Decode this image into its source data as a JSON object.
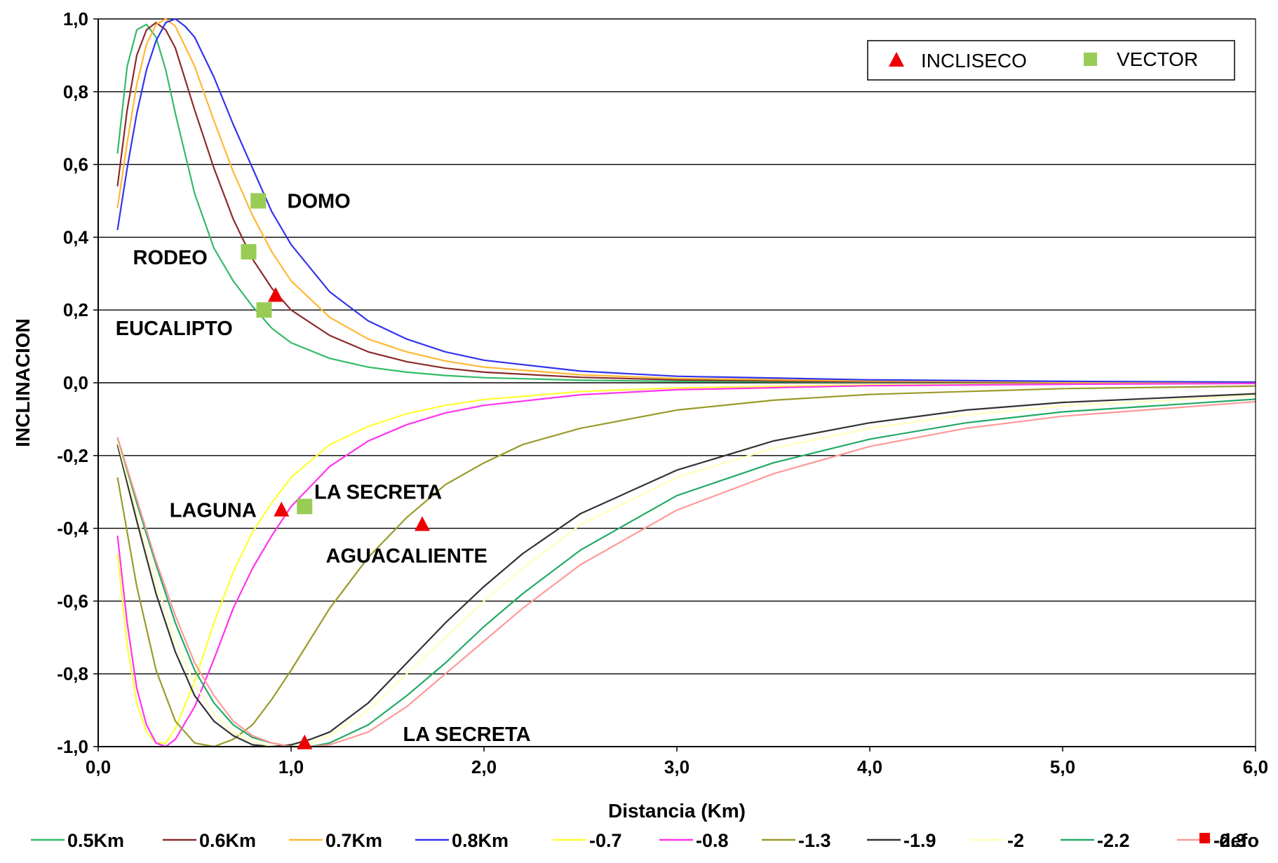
{
  "chart_data": {
    "type": "line",
    "xlabel": "Distancia (Km)",
    "ylabel": "INCLINACION",
    "xlim": [
      0,
      6
    ],
    "ylim": [
      -1,
      1
    ],
    "x_ticks": [
      "0,0",
      "1,0",
      "2,0",
      "3,0",
      "4,0",
      "5,0",
      "6,0"
    ],
    "y_ticks": [
      "1,0",
      "0,8",
      "0,6",
      "0,4",
      "0,2",
      "0,0",
      "-0,2",
      "-0,4",
      "-0,6",
      "-0,8",
      "-1,0"
    ],
    "grid": "horizontal",
    "series": [
      {
        "name": "0.5Km",
        "color": "#33bb66",
        "points": [
          [
            0.1,
            0.63
          ],
          [
            0.15,
            0.87
          ],
          [
            0.2,
            0.97
          ],
          [
            0.25,
            0.985
          ],
          [
            0.3,
            0.95
          ],
          [
            0.35,
            0.86
          ],
          [
            0.4,
            0.74
          ],
          [
            0.5,
            0.52
          ],
          [
            0.6,
            0.37
          ],
          [
            0.7,
            0.28
          ],
          [
            0.8,
            0.21
          ],
          [
            0.9,
            0.15
          ],
          [
            1.0,
            0.11
          ],
          [
            1.2,
            0.067
          ],
          [
            1.4,
            0.043
          ],
          [
            1.6,
            0.029
          ],
          [
            1.8,
            0.02
          ],
          [
            2.0,
            0.014
          ],
          [
            2.5,
            0.007
          ],
          [
            3.0,
            0.004
          ],
          [
            4.0,
            0.002
          ],
          [
            5.0,
            0.001
          ],
          [
            6.0,
            0.0
          ]
        ]
      },
      {
        "name": "0.6Km",
        "color": "#8b2a2a",
        "points": [
          [
            0.1,
            0.54
          ],
          [
            0.15,
            0.75
          ],
          [
            0.2,
            0.9
          ],
          [
            0.25,
            0.97
          ],
          [
            0.3,
            0.99
          ],
          [
            0.35,
            0.97
          ],
          [
            0.4,
            0.92
          ],
          [
            0.5,
            0.75
          ],
          [
            0.6,
            0.59
          ],
          [
            0.7,
            0.45
          ],
          [
            0.8,
            0.34
          ],
          [
            0.9,
            0.26
          ],
          [
            1.0,
            0.2
          ],
          [
            1.2,
            0.13
          ],
          [
            1.4,
            0.085
          ],
          [
            1.6,
            0.058
          ],
          [
            1.8,
            0.04
          ],
          [
            2.0,
            0.029
          ],
          [
            2.5,
            0.015
          ],
          [
            3.0,
            0.008
          ],
          [
            4.0,
            0.003
          ],
          [
            5.0,
            0.001
          ],
          [
            6.0,
            0.0
          ]
        ]
      },
      {
        "name": "0.7Km",
        "color": "#ffb833",
        "points": [
          [
            0.1,
            0.48
          ],
          [
            0.15,
            0.66
          ],
          [
            0.2,
            0.82
          ],
          [
            0.25,
            0.93
          ],
          [
            0.3,
            0.985
          ],
          [
            0.35,
            1.0
          ],
          [
            0.4,
            0.98
          ],
          [
            0.5,
            0.87
          ],
          [
            0.6,
            0.72
          ],
          [
            0.7,
            0.58
          ],
          [
            0.8,
            0.46
          ],
          [
            0.9,
            0.36
          ],
          [
            1.0,
            0.28
          ],
          [
            1.2,
            0.18
          ],
          [
            1.4,
            0.12
          ],
          [
            1.6,
            0.085
          ],
          [
            1.8,
            0.06
          ],
          [
            2.0,
            0.043
          ],
          [
            2.5,
            0.022
          ],
          [
            3.0,
            0.012
          ],
          [
            4.0,
            0.005
          ],
          [
            5.0,
            0.002
          ],
          [
            6.0,
            0.001
          ]
        ]
      },
      {
        "name": "0.8Km",
        "color": "#3333ee",
        "points": [
          [
            0.1,
            0.42
          ],
          [
            0.15,
            0.59
          ],
          [
            0.2,
            0.74
          ],
          [
            0.25,
            0.86
          ],
          [
            0.3,
            0.94
          ],
          [
            0.35,
            0.99
          ],
          [
            0.4,
            1.0
          ],
          [
            0.45,
            0.98
          ],
          [
            0.5,
            0.95
          ],
          [
            0.6,
            0.84
          ],
          [
            0.7,
            0.71
          ],
          [
            0.8,
            0.59
          ],
          [
            0.9,
            0.47
          ],
          [
            1.0,
            0.38
          ],
          [
            1.2,
            0.25
          ],
          [
            1.4,
            0.17
          ],
          [
            1.6,
            0.12
          ],
          [
            1.8,
            0.085
          ],
          [
            2.0,
            0.062
          ],
          [
            2.5,
            0.032
          ],
          [
            3.0,
            0.018
          ],
          [
            4.0,
            0.008
          ],
          [
            5.0,
            0.004
          ],
          [
            6.0,
            0.002
          ]
        ]
      },
      {
        "name": "-0.7",
        "color": "#ffff33",
        "points": [
          [
            0.1,
            -0.47
          ],
          [
            0.15,
            -0.72
          ],
          [
            0.2,
            -0.88
          ],
          [
            0.25,
            -0.96
          ],
          [
            0.3,
            -0.99
          ],
          [
            0.35,
            -0.99
          ],
          [
            0.4,
            -0.95
          ],
          [
            0.5,
            -0.82
          ],
          [
            0.6,
            -0.66
          ],
          [
            0.7,
            -0.52
          ],
          [
            0.8,
            -0.41
          ],
          [
            0.9,
            -0.33
          ],
          [
            1.0,
            -0.26
          ],
          [
            1.2,
            -0.17
          ],
          [
            1.4,
            -0.12
          ],
          [
            1.6,
            -0.085
          ],
          [
            1.8,
            -0.062
          ],
          [
            2.0,
            -0.046
          ],
          [
            2.5,
            -0.024
          ],
          [
            3.0,
            -0.014
          ],
          [
            4.0,
            -0.006
          ],
          [
            5.0,
            -0.003
          ],
          [
            6.0,
            -0.002
          ]
        ]
      },
      {
        "name": "-0.8",
        "color": "#ff33ee",
        "points": [
          [
            0.1,
            -0.42
          ],
          [
            0.15,
            -0.66
          ],
          [
            0.2,
            -0.84
          ],
          [
            0.25,
            -0.94
          ],
          [
            0.3,
            -0.99
          ],
          [
            0.35,
            -1.0
          ],
          [
            0.4,
            -0.98
          ],
          [
            0.5,
            -0.89
          ],
          [
            0.6,
            -0.76
          ],
          [
            0.7,
            -0.62
          ],
          [
            0.8,
            -0.51
          ],
          [
            0.9,
            -0.42
          ],
          [
            1.0,
            -0.34
          ],
          [
            1.2,
            -0.23
          ],
          [
            1.4,
            -0.16
          ],
          [
            1.6,
            -0.115
          ],
          [
            1.8,
            -0.083
          ],
          [
            2.0,
            -0.062
          ],
          [
            2.5,
            -0.033
          ],
          [
            3.0,
            -0.019
          ],
          [
            4.0,
            -0.008
          ],
          [
            5.0,
            -0.004
          ],
          [
            6.0,
            -0.002
          ]
        ]
      },
      {
        "name": "-1.3",
        "color": "#9a9a2a",
        "points": [
          [
            0.1,
            -0.26
          ],
          [
            0.2,
            -0.56
          ],
          [
            0.3,
            -0.79
          ],
          [
            0.4,
            -0.93
          ],
          [
            0.5,
            -0.99
          ],
          [
            0.6,
            -1.0
          ],
          [
            0.7,
            -0.98
          ],
          [
            0.8,
            -0.94
          ],
          [
            0.9,
            -0.87
          ],
          [
            1.0,
            -0.79
          ],
          [
            1.2,
            -0.62
          ],
          [
            1.4,
            -0.48
          ],
          [
            1.6,
            -0.37
          ],
          [
            1.8,
            -0.28
          ],
          [
            2.0,
            -0.22
          ],
          [
            2.2,
            -0.17
          ],
          [
            2.5,
            -0.125
          ],
          [
            3.0,
            -0.075
          ],
          [
            3.5,
            -0.048
          ],
          [
            4.0,
            -0.032
          ],
          [
            5.0,
            -0.016
          ],
          [
            6.0,
            -0.009
          ]
        ]
      },
      {
        "name": "-1.9",
        "color": "#333333",
        "points": [
          [
            0.1,
            -0.17
          ],
          [
            0.2,
            -0.38
          ],
          [
            0.3,
            -0.58
          ],
          [
            0.4,
            -0.74
          ],
          [
            0.5,
            -0.86
          ],
          [
            0.6,
            -0.93
          ],
          [
            0.7,
            -0.97
          ],
          [
            0.8,
            -0.995
          ],
          [
            0.9,
            -1.0
          ],
          [
            1.0,
            -0.995
          ],
          [
            1.1,
            -0.98
          ],
          [
            1.2,
            -0.96
          ],
          [
            1.4,
            -0.88
          ],
          [
            1.6,
            -0.77
          ],
          [
            1.8,
            -0.66
          ],
          [
            2.0,
            -0.56
          ],
          [
            2.2,
            -0.47
          ],
          [
            2.5,
            -0.36
          ],
          [
            3.0,
            -0.24
          ],
          [
            3.5,
            -0.16
          ],
          [
            4.0,
            -0.11
          ],
          [
            4.5,
            -0.075
          ],
          [
            5.0,
            -0.054
          ],
          [
            6.0,
            -0.03
          ]
        ]
      },
      {
        "name": "-2",
        "color": "#ffffbb",
        "points": [
          [
            0.1,
            -0.16
          ],
          [
            0.2,
            -0.36
          ],
          [
            0.3,
            -0.55
          ],
          [
            0.4,
            -0.71
          ],
          [
            0.5,
            -0.83
          ],
          [
            0.6,
            -0.91
          ],
          [
            0.7,
            -0.96
          ],
          [
            0.8,
            -0.985
          ],
          [
            0.9,
            -1.0
          ],
          [
            1.0,
            -1.0
          ],
          [
            1.1,
            -0.99
          ],
          [
            1.2,
            -0.97
          ],
          [
            1.4,
            -0.9
          ],
          [
            1.6,
            -0.8
          ],
          [
            1.8,
            -0.7
          ],
          [
            2.0,
            -0.6
          ],
          [
            2.2,
            -0.51
          ],
          [
            2.5,
            -0.39
          ],
          [
            3.0,
            -0.26
          ],
          [
            3.5,
            -0.18
          ],
          [
            4.0,
            -0.125
          ],
          [
            4.5,
            -0.088
          ],
          [
            5.0,
            -0.064
          ],
          [
            6.0,
            -0.035
          ]
        ]
      },
      {
        "name": "-2.2",
        "color": "#22aa66",
        "points": [
          [
            0.1,
            -0.15
          ],
          [
            0.2,
            -0.33
          ],
          [
            0.3,
            -0.5
          ],
          [
            0.4,
            -0.66
          ],
          [
            0.5,
            -0.79
          ],
          [
            0.6,
            -0.88
          ],
          [
            0.7,
            -0.94
          ],
          [
            0.8,
            -0.975
          ],
          [
            0.9,
            -0.99
          ],
          [
            1.0,
            -1.0
          ],
          [
            1.1,
            -1.0
          ],
          [
            1.2,
            -0.99
          ],
          [
            1.4,
            -0.94
          ],
          [
            1.6,
            -0.86
          ],
          [
            1.8,
            -0.77
          ],
          [
            2.0,
            -0.67
          ],
          [
            2.2,
            -0.58
          ],
          [
            2.5,
            -0.46
          ],
          [
            3.0,
            -0.31
          ],
          [
            3.5,
            -0.22
          ],
          [
            4.0,
            -0.155
          ],
          [
            4.5,
            -0.11
          ],
          [
            5.0,
            -0.08
          ],
          [
            6.0,
            -0.045
          ]
        ]
      },
      {
        "name": "-2.3",
        "color": "#ff9999",
        "points": [
          [
            0.1,
            -0.15
          ],
          [
            0.2,
            -0.32
          ],
          [
            0.3,
            -0.49
          ],
          [
            0.4,
            -0.64
          ],
          [
            0.5,
            -0.77
          ],
          [
            0.6,
            -0.86
          ],
          [
            0.7,
            -0.93
          ],
          [
            0.8,
            -0.97
          ],
          [
            0.9,
            -0.99
          ],
          [
            1.0,
            -1.0
          ],
          [
            1.1,
            -1.0
          ],
          [
            1.2,
            -0.995
          ],
          [
            1.4,
            -0.96
          ],
          [
            1.6,
            -0.89
          ],
          [
            1.8,
            -0.8
          ],
          [
            2.0,
            -0.71
          ],
          [
            2.2,
            -0.62
          ],
          [
            2.5,
            -0.5
          ],
          [
            3.0,
            -0.35
          ],
          [
            3.5,
            -0.25
          ],
          [
            4.0,
            -0.175
          ],
          [
            4.5,
            -0.125
          ],
          [
            5.0,
            -0.092
          ],
          [
            6.0,
            -0.052
          ]
        ]
      }
    ],
    "markers": {
      "defo": {
        "name": "defo",
        "color": "#ee0000"
      },
      "incliseco": {
        "name": "INCLISECO",
        "color": "#ee0000",
        "points": [
          [
            0.92,
            0.24
          ],
          [
            0.95,
            -0.35
          ],
          [
            1.68,
            -0.39
          ],
          [
            1.07,
            -0.99
          ]
        ]
      },
      "vector": {
        "name": "VECTOR",
        "color": "#99cc55",
        "points": [
          [
            0.83,
            0.5
          ],
          [
            0.78,
            0.36
          ],
          [
            0.86,
            0.2
          ],
          [
            1.07,
            -0.34
          ]
        ]
      }
    },
    "annotations": [
      {
        "text": "DOMO",
        "x": 0.98,
        "y": 0.5,
        "anchor": "start"
      },
      {
        "text": "RODEO",
        "x": 0.18,
        "y": 0.345,
        "anchor": "start"
      },
      {
        "text": "EUCALIPTO",
        "x": 0.09,
        "y": 0.15,
        "anchor": "start"
      },
      {
        "text": "LAGUNA",
        "x": 0.37,
        "y": -0.35,
        "anchor": "start"
      },
      {
        "text": "LA SECRETA",
        "x": 1.12,
        "y": -0.3,
        "anchor": "start"
      },
      {
        "text": "AGUACALIENTE",
        "x": 1.18,
        "y": -0.475,
        "anchor": "start"
      },
      {
        "text": "LA SECRETA",
        "x": 1.58,
        "y": -0.965,
        "anchor": "start"
      }
    ],
    "legend_inset": {
      "position": "top-right",
      "entries": [
        "INCLISECO",
        "VECTOR"
      ]
    },
    "legend_bottom": [
      "0.5Km",
      "0.6Km",
      "0.7Km",
      "0.8Km",
      "-0.7",
      "-0.8",
      "-1.3",
      "-1.9",
      "-2",
      "-2.2",
      "-2.3",
      "defo"
    ]
  }
}
